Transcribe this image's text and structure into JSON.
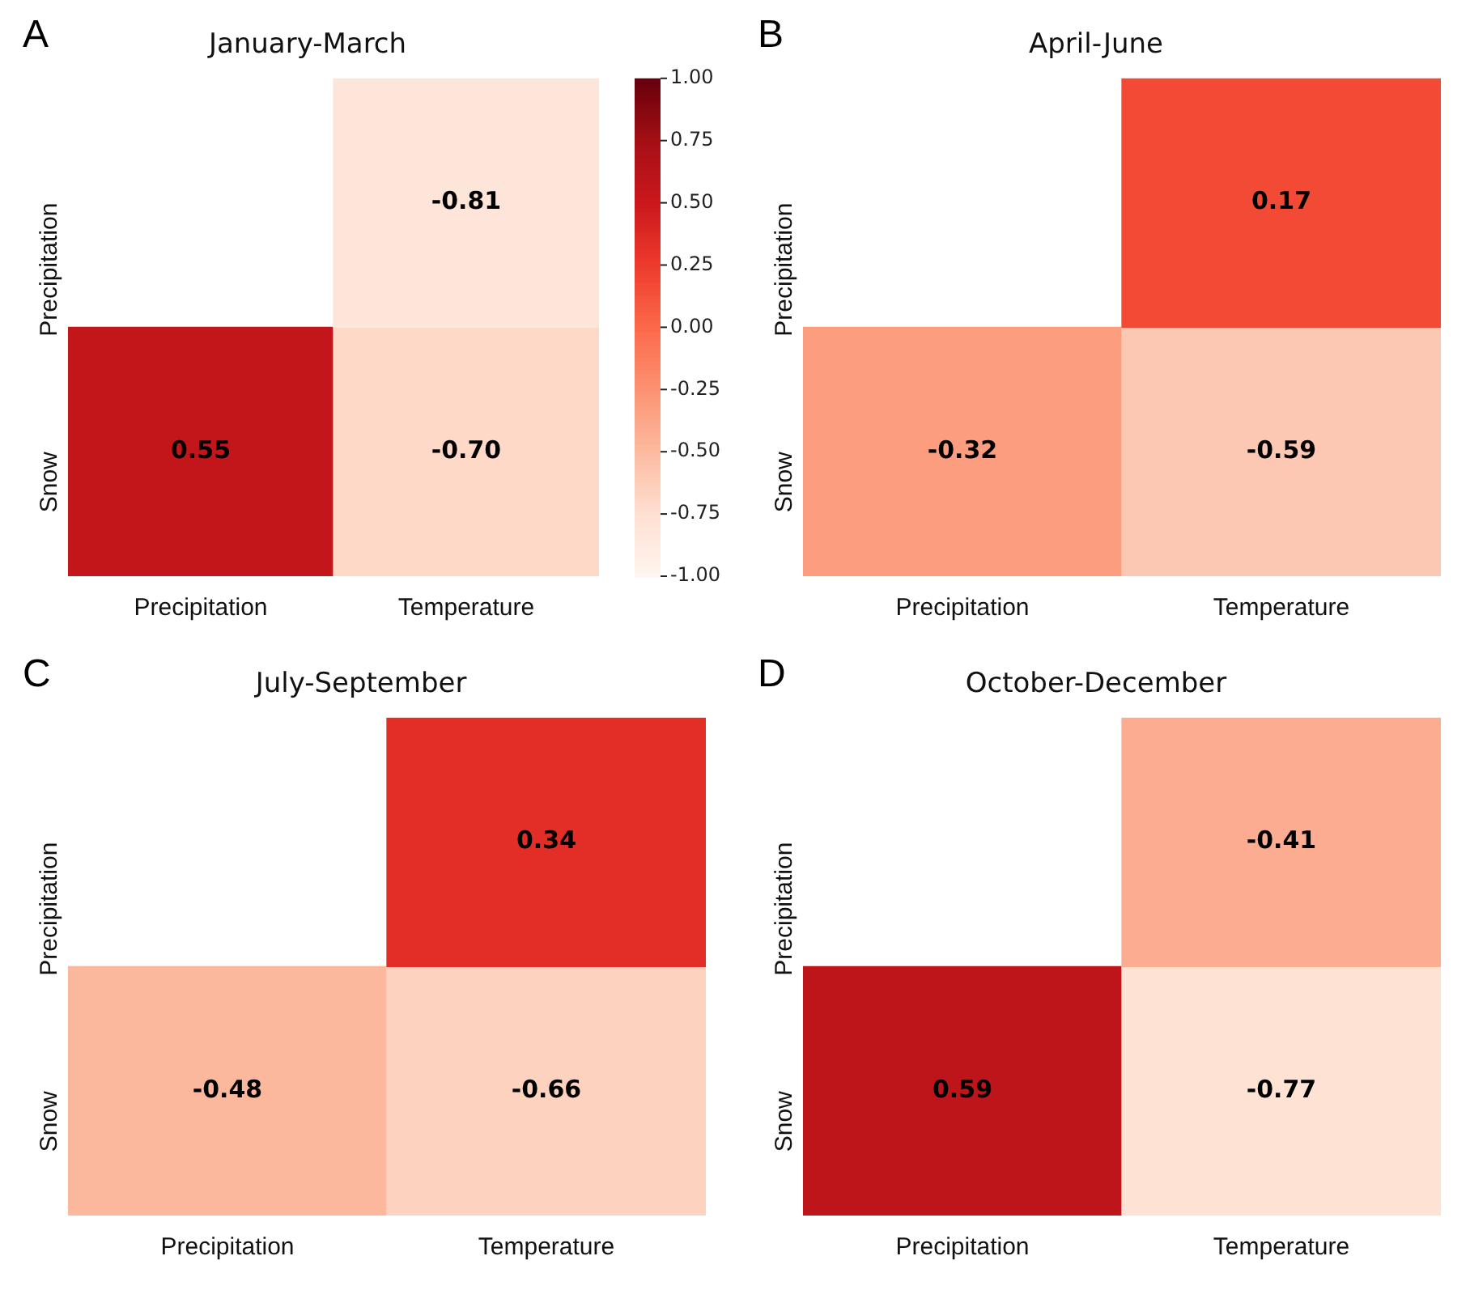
{
  "chart_data": [
    {
      "type": "heatmap",
      "title": "January-March",
      "annotations": [
        "A"
      ],
      "categories": [
        "Precipitation",
        "Temperature"
      ],
      "y_categories": [
        "Precipitation",
        "Snow"
      ],
      "cells": [
        [
          null,
          -0.81
        ],
        [
          0.55,
          -0.7
        ]
      ],
      "cell_labels": [
        [
          null,
          "-0.81"
        ],
        [
          "0.55",
          "-0.70"
        ]
      ],
      "clim": [
        -1,
        1
      ],
      "cticks": [
        {
          "value": -1,
          "label": "-1.00"
        },
        {
          "value": -0.75,
          "label": "-0.75"
        },
        {
          "value": -0.5,
          "label": "-0.50"
        },
        {
          "value": -0.25,
          "label": "-0.25"
        },
        {
          "value": 0,
          "label": "0.00"
        },
        {
          "value": 0.25,
          "label": "0.25"
        },
        {
          "value": 0.5,
          "label": "0.50"
        },
        {
          "value": 0.75,
          "label": "0.75"
        },
        {
          "value": 1,
          "label": "1.00"
        }
      ]
    },
    {
      "type": "heatmap",
      "title": "April-June",
      "annotations": [
        "B"
      ],
      "categories": [
        "Precipitation",
        "Temperature"
      ],
      "y_categories": [
        "Precipitation",
        "Snow"
      ],
      "cells": [
        [
          null,
          0.17
        ],
        [
          -0.32,
          -0.59
        ]
      ],
      "cell_labels": [
        [
          null,
          "0.17"
        ],
        [
          "-0.32",
          "-0.59"
        ]
      ]
    },
    {
      "type": "heatmap",
      "title": "July-September",
      "annotations": [
        "C"
      ],
      "categories": [
        "Precipitation",
        "Temperature"
      ],
      "y_categories": [
        "Precipitation",
        "Snow"
      ],
      "cells": [
        [
          null,
          0.34
        ],
        [
          -0.48,
          -0.66
        ]
      ],
      "cell_labels": [
        [
          null,
          "0.34"
        ],
        [
          "-0.48",
          "-0.66"
        ]
      ]
    },
    {
      "type": "heatmap",
      "title": "October-December",
      "annotations": [
        "D"
      ],
      "categories": [
        "Precipitation",
        "Temperature"
      ],
      "y_categories": [
        "Precipitation",
        "Snow"
      ],
      "cells": [
        [
          null,
          -0.41
        ],
        [
          0.59,
          -0.77
        ]
      ],
      "cell_labels": [
        [
          null,
          "-0.41"
        ],
        [
          "0.59",
          "-0.77"
        ]
      ]
    }
  ]
}
